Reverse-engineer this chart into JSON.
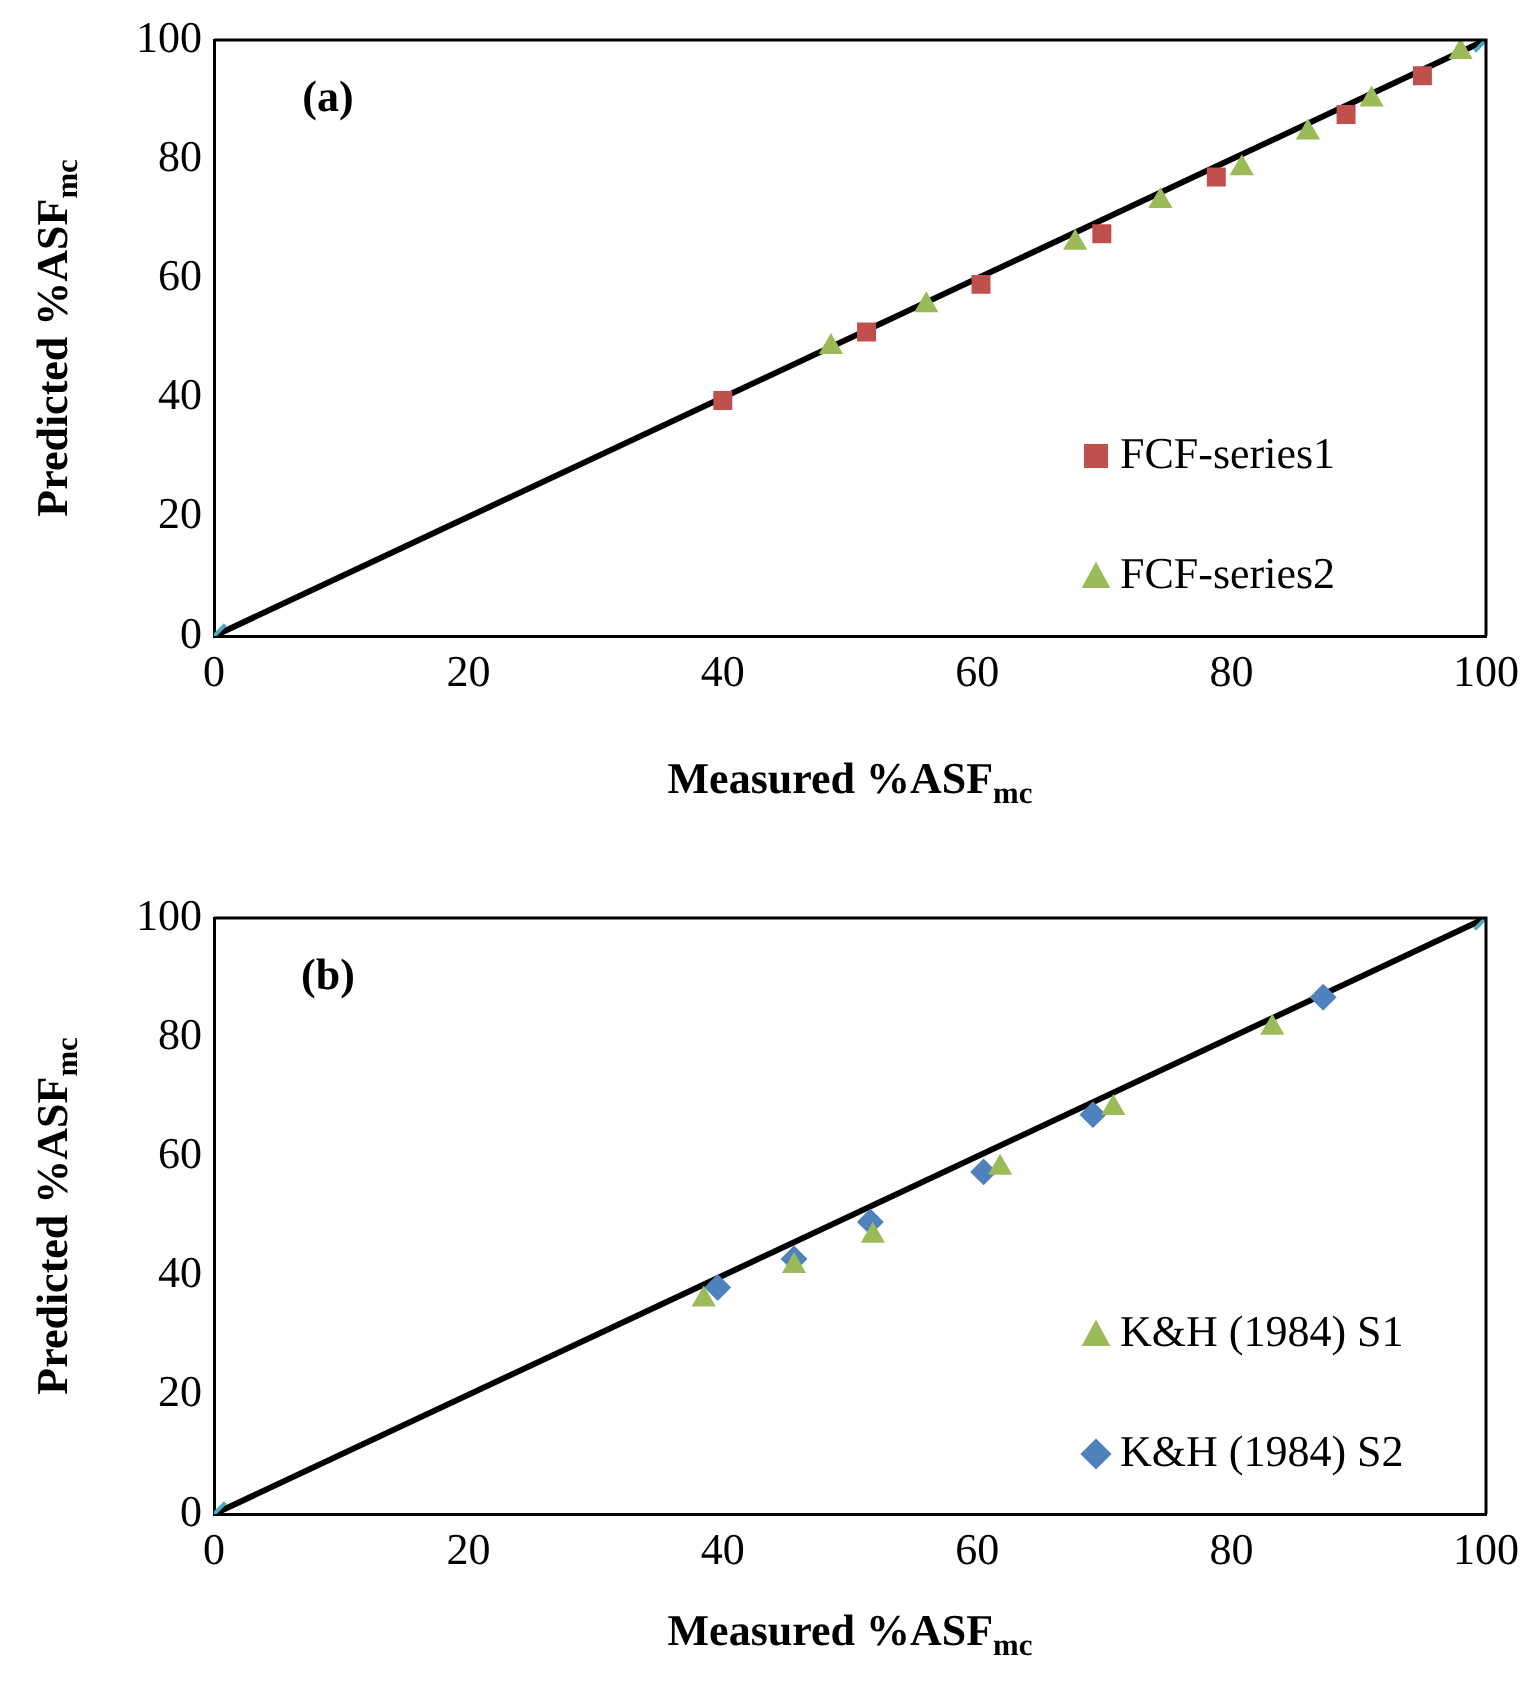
{
  "chart_data": [
    {
      "type": "scatter",
      "annotations": [
        "(a)"
      ],
      "xlabel": "Measured %ASF$_{mc}$",
      "ylabel": "Predicted %ASF$_{mc}$",
      "xlim": [
        0,
        100
      ],
      "ylim": [
        0,
        100
      ],
      "xticks": [
        0,
        20,
        40,
        60,
        80,
        100
      ],
      "yticks": [
        0,
        20,
        40,
        60,
        80,
        100
      ],
      "grid": false,
      "legend": "right",
      "series": [
        {
          "type": "line",
          "color": "#000000",
          "marker": "none",
          "x": [
            0,
            100
          ],
          "values": [
            0,
            100
          ]
        },
        {
          "type": "scatter",
          "color": "#4bacc6",
          "marker": "cross",
          "x": [
            0,
            100
          ],
          "values": [
            0,
            100
          ]
        },
        {
          "name": "FCF-series1",
          "type": "scatter",
          "color": "#c0504d",
          "marker": "square",
          "x": [
            40,
            51.3,
            60.3,
            69.8,
            78.8,
            89,
            95
          ],
          "values": [
            39.5,
            51,
            59,
            67.5,
            77,
            87.5,
            94
          ]
        },
        {
          "name": "FCF-series2",
          "type": "scatter",
          "color": "#9bbb59",
          "marker": "triangle",
          "x": [
            48.5,
            56,
            67.7,
            74.4,
            80.8,
            86,
            91,
            98
          ],
          "values": [
            48.5,
            55.5,
            66,
            73,
            78.5,
            84.5,
            90,
            98
          ]
        }
      ]
    },
    {
      "type": "scatter",
      "annotations": [
        "(b)"
      ],
      "xlabel": "Measured %ASF$_{mc}$",
      "ylabel": "Predicted %ASF$_{mc}$",
      "xlim": [
        0,
        100
      ],
      "ylim": [
        0,
        100
      ],
      "xticks": [
        0,
        20,
        40,
        60,
        80,
        100
      ],
      "yticks": [
        0,
        20,
        40,
        60,
        80,
        100
      ],
      "grid": false,
      "legend": "right",
      "series": [
        {
          "type": "line",
          "color": "#000000",
          "marker": "none",
          "x": [
            0,
            100
          ],
          "values": [
            0,
            100
          ]
        },
        {
          "type": "scatter",
          "color": "#4bacc6",
          "marker": "cross",
          "x": [
            0,
            100
          ],
          "values": [
            0,
            100
          ]
        },
        {
          "name": "K&H (1984) S1",
          "type": "scatter",
          "color": "#9bbb59",
          "marker": "triangle",
          "x": [
            38.5,
            45.6,
            51.8,
            61.8,
            70.7,
            83.2
          ],
          "values": [
            36,
            41.6,
            46.7,
            58.1,
            68.1,
            81.6
          ]
        },
        {
          "name": "K&H (1984) S2",
          "type": "scatter",
          "color": "#4f81bd",
          "marker": "diamond",
          "x": [
            39.6,
            45.6,
            51.6,
            60.5,
            69.1,
            87.2
          ],
          "values": [
            38,
            42.8,
            49,
            57.4,
            67,
            86.7
          ]
        }
      ]
    }
  ]
}
